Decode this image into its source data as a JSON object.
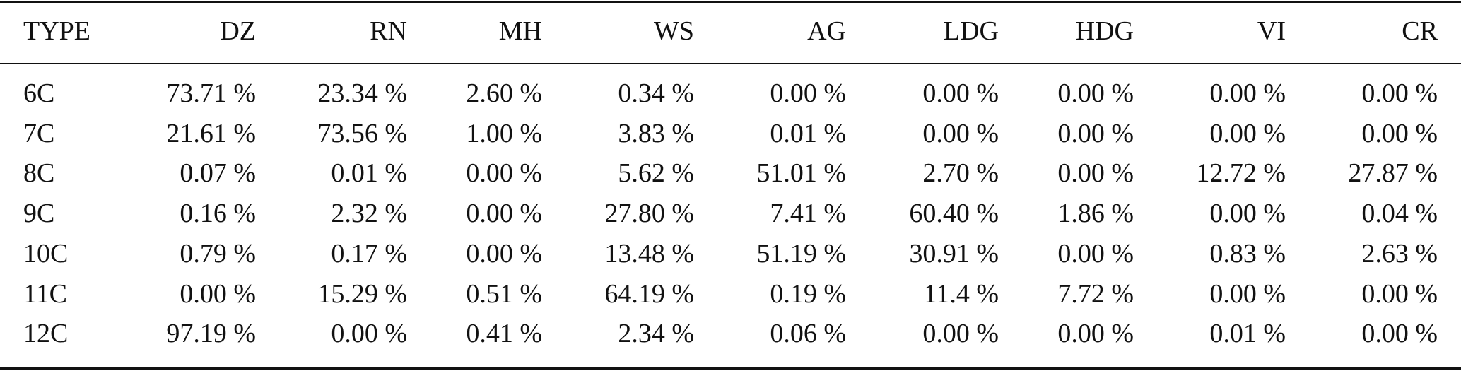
{
  "table": {
    "header": [
      "TYPE",
      "DZ",
      "RN",
      "MH",
      "WS",
      "AG",
      "LDG",
      "HDG",
      "VI",
      "CR"
    ],
    "rows": [
      [
        "6C",
        "73.71 %",
        "23.34 %",
        "2.60 %",
        "0.34 %",
        "0.00 %",
        "0.00 %",
        "0.00 %",
        "0.00 %",
        "0.00 %"
      ],
      [
        "7C",
        "21.61 %",
        "73.56 %",
        "1.00 %",
        "3.83 %",
        "0.01 %",
        "0.00 %",
        "0.00 %",
        "0.00 %",
        "0.00 %"
      ],
      [
        "8C",
        "0.07 %",
        "0.01 %",
        "0.00 %",
        "5.62 %",
        "51.01 %",
        "2.70 %",
        "0.00 %",
        "12.72 %",
        "27.87 %"
      ],
      [
        "9C",
        "0.16 %",
        "2.32 %",
        "0.00 %",
        "27.80 %",
        "7.41 %",
        "60.40 %",
        "1.86 %",
        "0.00 %",
        "0.04 %"
      ],
      [
        "10C",
        "0.79 %",
        "0.17 %",
        "0.00 %",
        "13.48 %",
        "51.19 %",
        "30.91 %",
        "0.00 %",
        "0.83 %",
        "2.63 %"
      ],
      [
        "11C",
        "0.00 %",
        "15.29 %",
        "0.51 %",
        "64.19 %",
        "0.19 %",
        "11.4 %",
        "7.72 %",
        "0.00 %",
        "0.00 %"
      ],
      [
        "12C",
        "97.19 %",
        "0.00 %",
        "0.41 %",
        "2.34 %",
        "0.06 %",
        "0.00 %",
        "0.00 %",
        "0.01 %",
        "0.00 %"
      ]
    ]
  }
}
